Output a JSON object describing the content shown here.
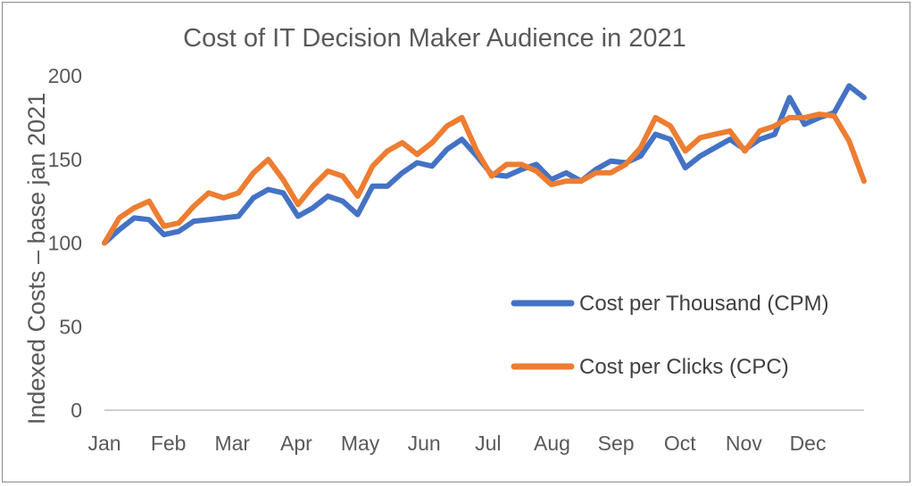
{
  "colors": {
    "cpm": "#4472C4",
    "cpc": "#ED7D31",
    "axis": "#BFBFBF",
    "text": "#595959"
  },
  "chart_data": {
    "type": "line",
    "title": "Cost of IT Decision Maker Audience in 2021",
    "xlabel": "",
    "ylabel": "Indexed Costs – base jan 2021",
    "ylim": [
      0,
      200
    ],
    "yticks": [
      0,
      50,
      100,
      150,
      200
    ],
    "grid": false,
    "legend_position": "bottom-right",
    "month_labels": [
      "Jan",
      "Feb",
      "Mar",
      "Apr",
      "May",
      "Jun",
      "Jul",
      "Aug",
      "Sep",
      "Oct",
      "Nov",
      "Dec"
    ],
    "series": [
      {
        "name": "Cost per Thousand (CPM)",
        "color": "#4472C4",
        "values": [
          100,
          108,
          115,
          114,
          105,
          107,
          113,
          114,
          115,
          116,
          127,
          132,
          130,
          116,
          121,
          128,
          125,
          117,
          134,
          134,
          142,
          148,
          146,
          156,
          162,
          152,
          141,
          140,
          144,
          147,
          138,
          142,
          137,
          144,
          149,
          148,
          152,
          165,
          162,
          145,
          152,
          157,
          162,
          156,
          162,
          165,
          187,
          171,
          175,
          178,
          194,
          187
        ]
      },
      {
        "name": "Cost per Clicks (CPC)",
        "color": "#ED7D31",
        "values": [
          100,
          115,
          121,
          125,
          110,
          112,
          122,
          130,
          127,
          130,
          142,
          150,
          138,
          123,
          134,
          143,
          140,
          128,
          146,
          155,
          160,
          153,
          160,
          170,
          175,
          155,
          140,
          147,
          147,
          143,
          135,
          137,
          137,
          142,
          142,
          147,
          157,
          175,
          170,
          155,
          163,
          165,
          167,
          155,
          167,
          170,
          175,
          175,
          177,
          176,
          161,
          137
        ]
      }
    ]
  }
}
